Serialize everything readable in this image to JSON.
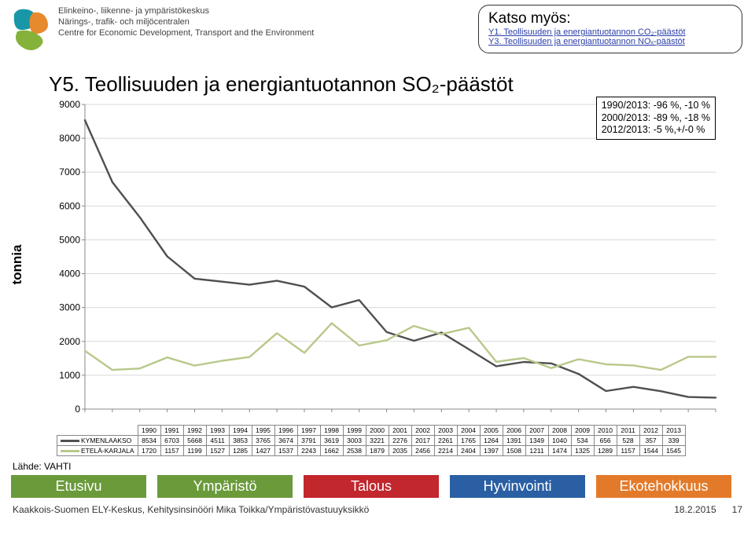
{
  "header": {
    "org_fi": "Elinkeino-, liikenne- ja ympäristökeskus",
    "org_sv": "Närings-, trafik- och miljöcentralen",
    "org_en": "Centre for Economic Development, Transport and the Environment",
    "logo_colors": {
      "teal": "#1997a6",
      "orange": "#e78a2d",
      "green": "#85b23a"
    }
  },
  "see_also": {
    "title": "Katso myös:",
    "links": [
      "Y1. Teollisuuden ja energiantuotannon CO₂-päästöt",
      "Y3. Teollisuuden ja energiantuotannon NOₓ-päästöt"
    ]
  },
  "title": "Y5. Teollisuuden ja energiantuotannon SO₂-päästöt",
  "stat_box": [
    "1990/2013: -96 %, -10 %",
    "2000/2013: -89 %, -18 %",
    "2012/2013: -5 %,+/-0 %"
  ],
  "chart": {
    "type": "line",
    "ylabel": "tonnia",
    "ylim": [
      0,
      9000
    ],
    "ytick_step": 1000,
    "years": [
      1990,
      1991,
      1992,
      1993,
      1994,
      1995,
      1996,
      1997,
      1998,
      1999,
      2000,
      2001,
      2002,
      2003,
      2004,
      2005,
      2006,
      2007,
      2008,
      2009,
      2010,
      2011,
      2012,
      2013
    ],
    "grid_color": "#d9d9d9",
    "background": "#ffffff",
    "series": [
      {
        "name": "KYMENLAAKSO",
        "color": "#4f4f4f",
        "width": 2.4,
        "values": [
          8534,
          6703,
          5668,
          4511,
          3853,
          3765,
          3674,
          3791,
          3619,
          3003,
          3221,
          2276,
          2017,
          2261,
          1765,
          1264,
          1391,
          1349,
          1040,
          534,
          656,
          528,
          357,
          339
        ]
      },
      {
        "name": "ETELÄ-KARJALA",
        "color": "#b8c88a",
        "width": 2.4,
        "values": [
          1720,
          1157,
          1199,
          1527,
          1285,
          1427,
          1537,
          2243,
          1662,
          2538,
          1879,
          2035,
          2456,
          2214,
          2404,
          1397,
          1508,
          1211,
          1474,
          1325,
          1289,
          1157,
          1544,
          1545
        ]
      }
    ]
  },
  "source": "Lähde: VAHTI",
  "nav": [
    {
      "label": "Etusivu",
      "color": "#6a9a3a"
    },
    {
      "label": "Ympäristö",
      "color": "#6a9a3a"
    },
    {
      "label": "Talous",
      "color": "#c1272d"
    },
    {
      "label": "Hyvinvointi",
      "color": "#2a5fa3"
    },
    {
      "label": "Ekotehokkuus",
      "color": "#e37a2a"
    }
  ],
  "footer": {
    "left": "Kaakkois-Suomen ELY-Keskus, Kehitysinsinööri Mika Toikka/Ympäristövastuuyksikkö",
    "date": "18.2.2015",
    "page": "17"
  }
}
